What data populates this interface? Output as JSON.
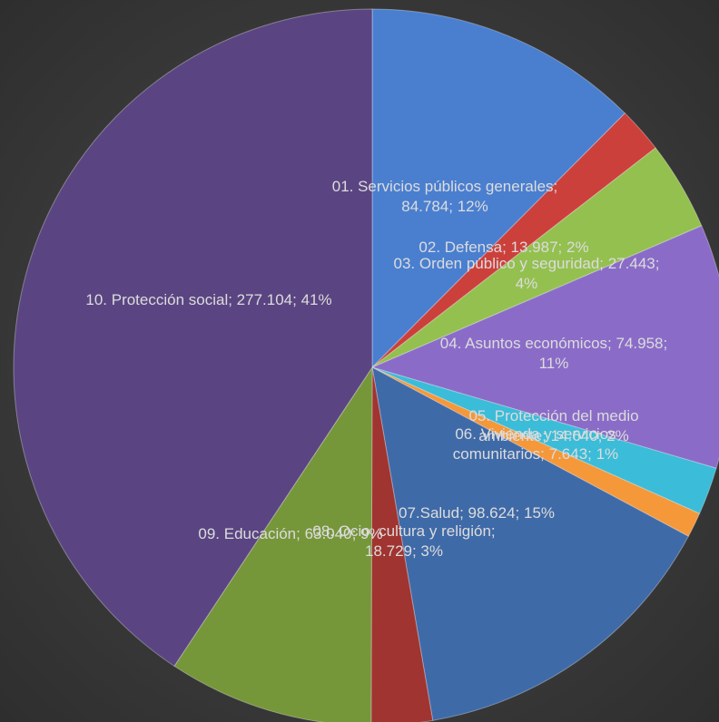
{
  "chart_data": {
    "type": "pie",
    "values": [
      84784,
      13987,
      27443,
      74958,
      14640,
      7643,
      98624,
      18729,
      63040,
      277104
    ],
    "value_labels": [
      "01. Servicios públicos generales; 84.784; 12%",
      "02. Defensa; 13.987; 2%",
      "03. Orden público y seguridad; 27.443; 4%",
      "04. Asuntos económicos; 74.958; 11%",
      "05. Protección del medio ambiente; 14.640; 2%",
      "06. Vivienda y servicios comunitarios; 7.643; 1%",
      "07.Salud; 98.624; 15%",
      "08. Ocio, cultura y religión; 18.729; 3%",
      "09. Educación; 63.040; 9%",
      "10. Protección social; 277.104; 41%"
    ],
    "colors": [
      "#4a7fd0",
      "#cc403c",
      "#94c050",
      "#8a6cc8",
      "#3bbcd8",
      "#f5983a",
      "#3f6aa8",
      "#a03430",
      "#76963a",
      "#5a4582"
    ]
  }
}
